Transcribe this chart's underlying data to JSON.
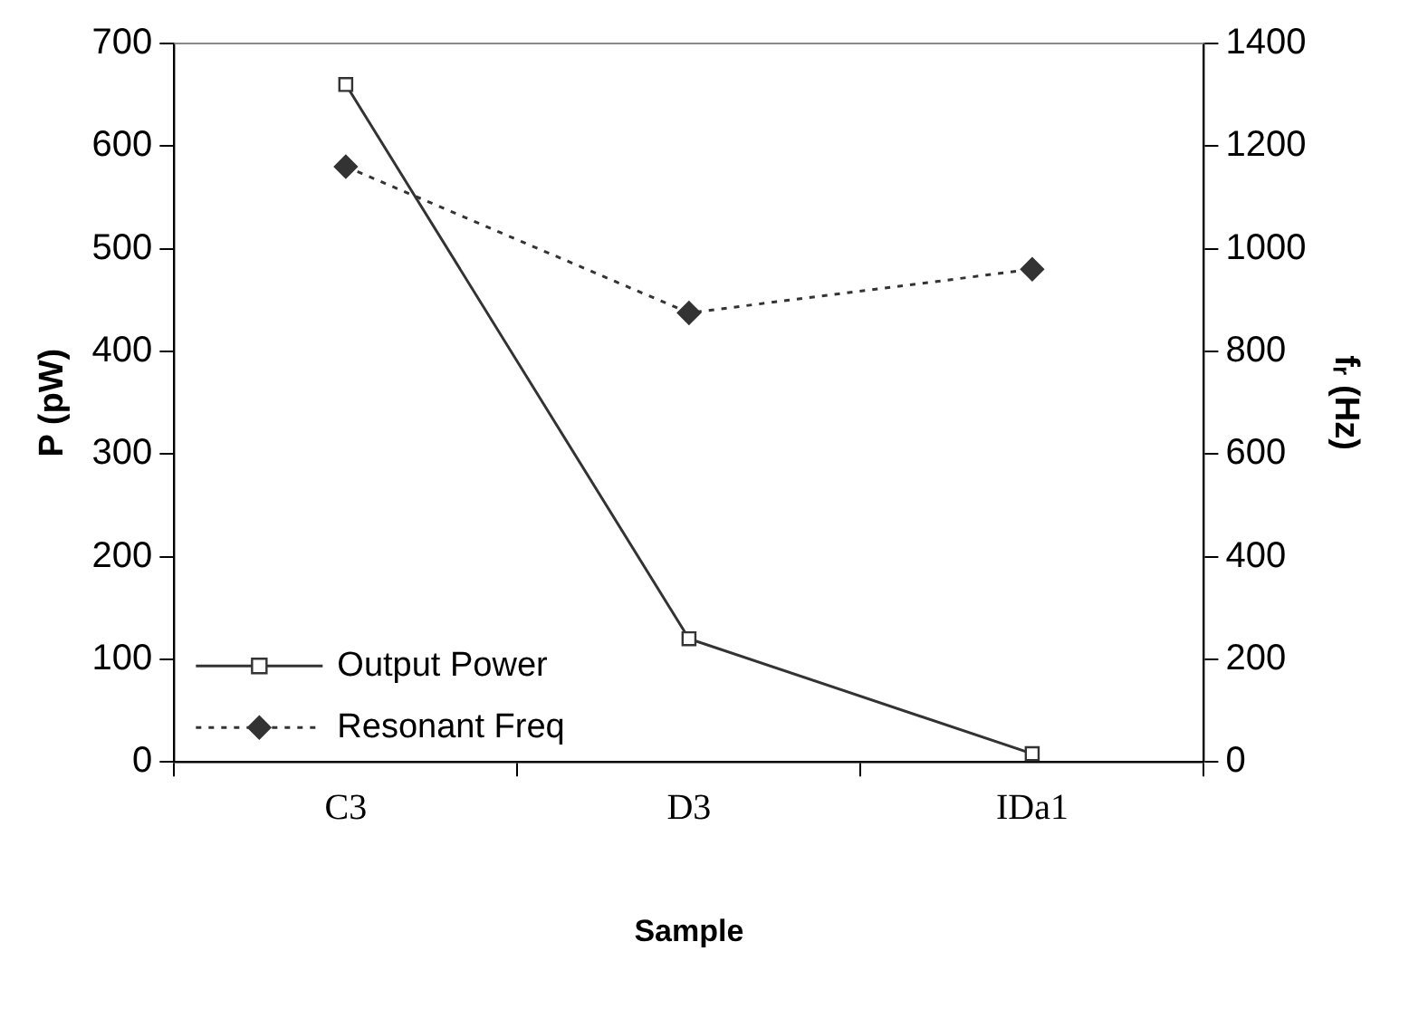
{
  "chart_data": {
    "type": "line",
    "xlabel": "Sample",
    "ylabel": "P (pW)",
    "y2label": "fᵣ (Hz)",
    "categories": [
      "C3",
      "D3",
      "IDa1"
    ],
    "series": [
      {
        "name": "Output Power",
        "color": "#333333",
        "values": [
          660,
          120,
          8
        ],
        "marker": "square",
        "line_style": "solid"
      },
      {
        "name": "Resonant Freq",
        "color": "#333333",
        "values": [
          1160,
          875,
          960
        ],
        "axis": "y2",
        "marker": "diamond",
        "line_style": "dotted"
      }
    ],
    "ylim": [
      0,
      700
    ],
    "yticks": [
      0,
      100,
      200,
      300,
      400,
      500,
      600,
      700
    ],
    "y2lim": [
      0,
      1400
    ],
    "y2ticks": [
      0,
      200,
      400,
      600,
      800,
      1000,
      1200,
      1400
    ],
    "grid": false,
    "legend": "bottom left"
  }
}
